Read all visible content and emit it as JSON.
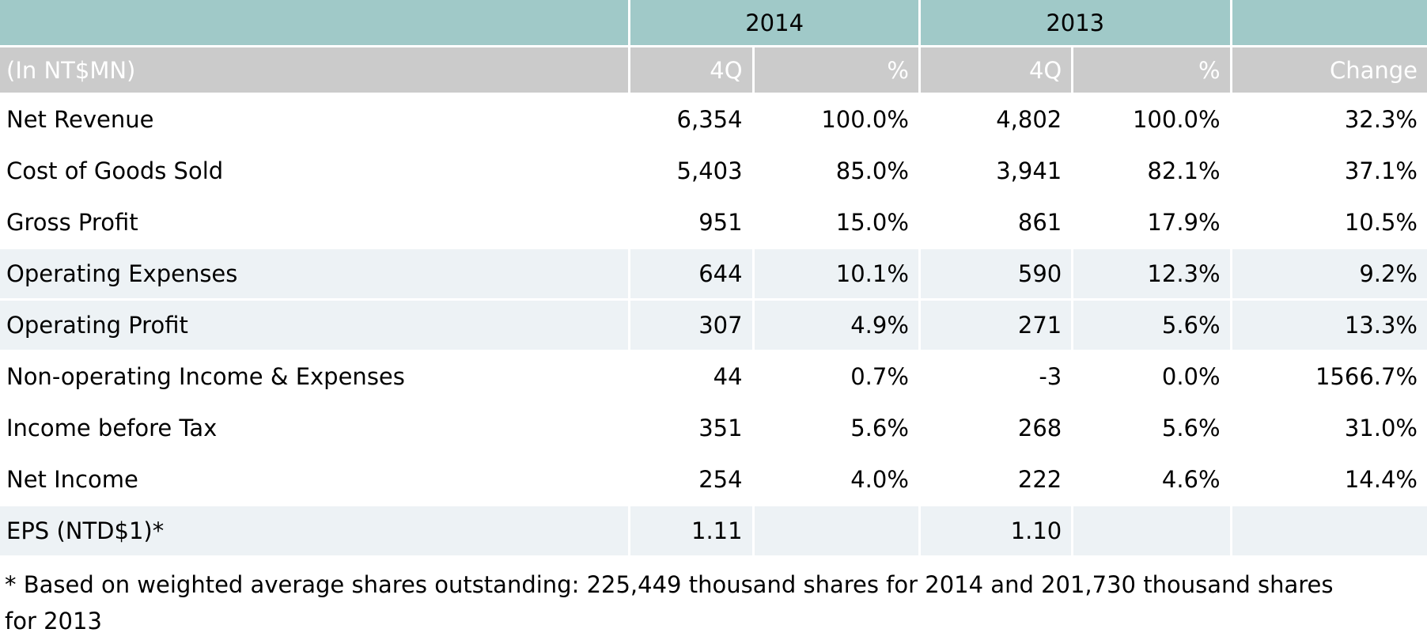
{
  "header": {
    "unit_label": "(In NT$MN)",
    "years": [
      "2014",
      "2013"
    ],
    "sub_headers": [
      "4Q",
      "%",
      "4Q",
      "%",
      "Change"
    ]
  },
  "rows": [
    {
      "label": "Net Revenue",
      "cells": [
        "6,354",
        "100.0%",
        "4,802",
        "100.0%",
        "32.3%"
      ]
    },
    {
      "label": "Cost of Goods Sold",
      "cells": [
        "5,403",
        "85.0%",
        "3,941",
        "82.1%",
        "37.1%"
      ]
    },
    {
      "label": "Gross Profit",
      "cells": [
        "951",
        "15.0%",
        "861",
        "17.9%",
        "10.5%"
      ]
    },
    {
      "label": "Operating Expenses",
      "cells": [
        "644",
        "10.1%",
        "590",
        "12.3%",
        "9.2%"
      ]
    },
    {
      "label": "Operating Profit",
      "cells": [
        "307",
        "4.9%",
        "271",
        "5.6%",
        "13.3%"
      ]
    },
    {
      "label": "Non-operating Income & Expenses",
      "cells": [
        "44",
        "0.7%",
        "-3",
        "0.0%",
        "1566.7%"
      ]
    },
    {
      "label": "Income before Tax",
      "cells": [
        "351",
        "5.6%",
        "268",
        "5.6%",
        "31.0%"
      ]
    },
    {
      "label": "Net Income",
      "cells": [
        "254",
        "4.0%",
        "222",
        "4.6%",
        "14.4%"
      ]
    },
    {
      "label": "EPS (NTD$1)*",
      "cells": [
        "1.11",
        "",
        "1.10",
        "",
        ""
      ]
    }
  ],
  "footnote": "* Based on weighted average shares outstanding: 225,449 thousand shares for 2014 and 201,730 thousand shares for 2013",
  "colors": {
    "year_header_bg": "#a0c9c8",
    "column_header_bg": "#cbcbcb",
    "column_header_text": "#ffffff",
    "tinted_row_bg": "#edf2f5",
    "body_text": "#000000"
  }
}
